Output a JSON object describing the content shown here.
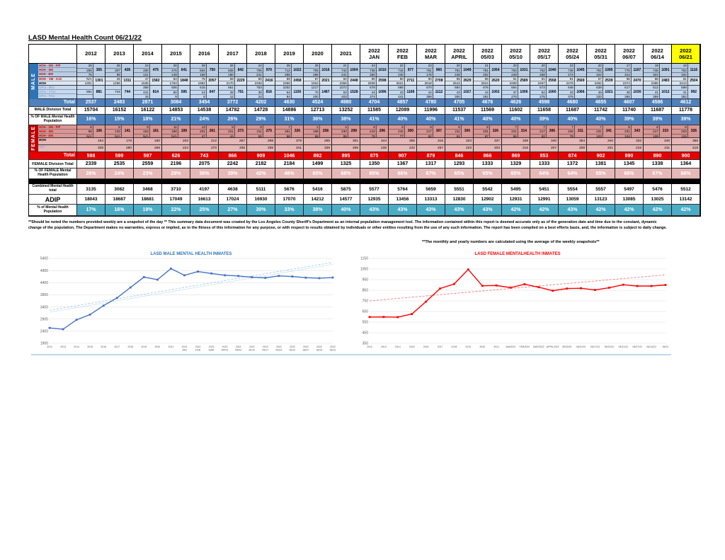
{
  "title": "LASD Mental Health Count 06/21/22",
  "columns": [
    {
      "label": "2012"
    },
    {
      "label": "2013"
    },
    {
      "label": "2014"
    },
    {
      "label": "2015"
    },
    {
      "label": "2016"
    },
    {
      "label": "2017"
    },
    {
      "label": "2018"
    },
    {
      "label": "2019"
    },
    {
      "label": "2020"
    },
    {
      "label": "2021"
    },
    {
      "label": "2022",
      "sub": "JAN"
    },
    {
      "label": "2022",
      "sub": "FEB"
    },
    {
      "label": "2022",
      "sub": "MAR"
    },
    {
      "label": "2022",
      "sub": "APRIL"
    },
    {
      "label": "2022",
      "sub": "05/03"
    },
    {
      "label": "2022",
      "sub": "05/10"
    },
    {
      "label": "2022",
      "sub": "05/17"
    },
    {
      "label": "2022",
      "sub": "05/24"
    },
    {
      "label": "2022",
      "sub": "05/31"
    },
    {
      "label": "2022",
      "sub": "06/07"
    },
    {
      "label": "2022",
      "sub": "06/14"
    },
    {
      "label": "2022",
      "sub": "06/21",
      "highlight": true
    }
  ],
  "male": {
    "side_label": "MALE",
    "groups": [
      {
        "rows": [
          {
            "label": "HOH - SM - FIP",
            "style": "red",
            "values": [
              25,
              25,
              24,
              26,
              28,
              26,
              24,
              25,
              25,
              21,
              24,
              22,
              23,
              20,
              21,
              20,
              20,
              23,
              20,
              17,
              19,
              19
            ]
          },
          {
            "label": "HOH - SM",
            "style": "red",
            "values": [
              255,
              307,
              330,
              476,
              564,
              636,
              705,
              712,
              705,
              742,
              736,
              715,
              761,
              781,
              781,
              763,
              762,
              748,
              751,
              776,
              748,
              763
            ]
          },
          {
            "label": "HOH - EM",
            "style": "red",
            "values": [
              75,
              96,
              121,
              139,
              158,
              180,
              241,
              285,
              286,
              241,
              250,
              240,
              176,
              248,
              252,
              248,
              258,
              274,
              324,
              314,
              324,
              334
            ]
          }
        ],
        "subtotals": [
          355,
          428,
          475,
          641,
          750,
          842,
          970,
          1022,
          1016,
          1004,
          1010,
          977,
          960,
          1049,
          1054,
          1031,
          1040,
          1045,
          1095,
          1107,
          1091,
          1116
        ]
      },
      {
        "rows": [
          {
            "label": "MOH - SM - K10",
            "style": "red",
            "values": [
              "N/A",
              25,
              47,
              84,
              75,
              59,
              80,
              89,
              87,
              92,
              90,
              90,
              90,
              85,
              96,
              91,
              91,
              91,
              57,
              96,
              98,
              91
            ]
          },
          {
            "label": "MOH",
            "style": "black",
            "values": [
              1301,
              1286,
              1535,
              1764,
              1982,
              2170,
              2336,
              2369,
              1934,
              2356,
              2508,
              2621,
              2618,
              2544,
              2524,
              2498,
              2467,
              2478,
              2482,
              2374,
              2385,
              2413
            ]
          }
        ],
        "subtotals": [
          1301,
          1311,
          1582,
          1848,
          2057,
          2229,
          2416,
          2458,
          2021,
          2448,
          2598,
          2711,
          2708,
          2629,
          2620,
          2589,
          2558,
          2569,
          2539,
          2470,
          2483,
          2504
        ]
      },
      {
        "rows": [
          {
            "label": "GPm - MIU",
            "style": "gray",
            "values": [
              "",
              "",
              358,
              506,
              615,
              661,
              753,
              1002,
              1217,
              1072,
              678,
              685,
              670,
              684,
              676,
              694,
              673,
              648,
              639,
              617,
              612,
              599
            ]
          },
          {
            "label": "GPm - 7712",
            "style": "gray",
            "values": [
              881,
              744,
              441,
              80,
              24,
              28,
              39,
              64,
              70,
              53,
              44,
              43,
              44,
              43,
              44,
              37,
              52,
              43,
              49,
              48,
              41,
              41
            ]
          },
          {
            "label": "GPm - PSC",
            "style": "gray",
            "values": [
              "",
              "",
              15,
              9,
              8,
              12,
              24,
              84,
              200,
              403,
              374,
              441,
              398,
              300,
              282,
              275,
              275,
              375,
              333,
              365,
              359,
              352
            ]
          }
        ],
        "subtotals": [
          881,
          744,
          814,
          595,
          647,
          701,
          816,
          1150,
          1487,
          1528,
          1096,
          1169,
          1112,
          1027,
          1002,
          1006,
          1000,
          1066,
          1021,
          1030,
          1012,
          992
        ]
      }
    ],
    "total_label": "Total",
    "totals": [
      2537,
      2483,
      2871,
      3084,
      3454,
      3772,
      4202,
      4630,
      4524,
      4980,
      4704,
      4857,
      4780,
      4705,
      4676,
      4626,
      4598,
      4680,
      4655,
      4607,
      4586,
      4612
    ],
    "division_label": "MALE Division Total",
    "division": [
      15704,
      16152,
      16122,
      14853,
      14538,
      14782,
      14728,
      14886,
      12713,
      13252,
      11585,
      12089,
      11996,
      11537,
      11569,
      11602,
      11658,
      11687,
      11742,
      11740,
      11687,
      11778
    ],
    "pct_label": "% OF MALE Mental Health Population",
    "pct": [
      "16%",
      "15%",
      "18%",
      "21%",
      "24%",
      "26%",
      "29%",
      "31%",
      "36%",
      "38%",
      "41%",
      "40%",
      "40%",
      "41%",
      "40%",
      "40%",
      "39%",
      "40%",
      "40%",
      "39%",
      "39%",
      "39%"
    ]
  },
  "female": {
    "side_label": "FEMALE",
    "groups": [
      {
        "rows": [
          {
            "label": "HOH - SM - FIP",
            "style": "red",
            "values": [
              8,
              8,
              8,
              11,
              13,
              8,
              9,
              7,
              2,
              4,
              8,
              8,
              8,
              8,
              8,
              7,
              7,
              7,
              7,
              8,
              8,
              8
            ]
          },
          {
            "label": "HOH - SM",
            "style": "red",
            "values": [
              98,
              133,
              153,
              188,
              201,
              221,
              211,
              261,
              198,
              230,
              210,
              215,
              217,
              211,
              231,
              221,
              217,
              226,
              231,
              231,
              217,
              203
            ]
          },
          {
            "label": "HOH - EM",
            "style": "red",
            "values": [
              "N/A",
              "N/A",
              "N/A",
              "N/A",
              47,
              44,
              55,
              58,
              58,
              65,
              78,
              77,
              82,
              81,
              87,
              86,
              82,
              78,
              103,
              104,
              108,
              115
            ]
          }
        ],
        "subtotals": [
          106,
          141,
          161,
          199,
          261,
          273,
          275,
          326,
          258,
          299,
          296,
          300,
          307,
          300,
          326,
          314,
          306,
          311,
          341,
          343,
          333,
          326
        ]
      }
    ],
    "single_rows": [
      {
        "label": "MOH",
        "style": "black",
        "values": [
          164,
          178,
          180,
          203,
          212,
          257,
          298,
          379,
          295,
          301,
          344,
          365,
          315,
          323,
          337,
          339,
          340,
          354,
          340,
          332,
          346,
          356
        ]
      },
      {
        "label": "GPf",
        "style": "gray",
        "values": [
          328,
          280,
          256,
          224,
          270,
          336,
          336,
          341,
          339,
          295,
          235,
          242,
          257,
          223,
          203,
          216,
          207,
          209,
          221,
          215,
          211,
          218
        ]
      }
    ],
    "total_label": "Total",
    "totals": [
      598,
      599,
      597,
      626,
      743,
      866,
      909,
      1046,
      892,
      895,
      875,
      907,
      879,
      846,
      866,
      869,
      853,
      874,
      902,
      890,
      890,
      900
    ],
    "division_label": "FEMALE Division Total",
    "division": [
      2339,
      2535,
      2559,
      2196,
      2075,
      2242,
      2182,
      2184,
      1499,
      1325,
      1350,
      1367,
      1317,
      1293,
      1333,
      1329,
      1333,
      1372,
      1381,
      1345,
      1338,
      1364
    ],
    "pct_label": "% OF FEMALE Mental Health Population",
    "pct": [
      "26%",
      "24%",
      "23%",
      "29%",
      "36%",
      "39%",
      "42%",
      "48%",
      "60%",
      "68%",
      "65%",
      "66%",
      "67%",
      "65%",
      "65%",
      "65%",
      "64%",
      "64%",
      "65%",
      "66%",
      "67%",
      "66%"
    ]
  },
  "combined": {
    "label": "Combined Mental Health total",
    "values": [
      3135,
      3082,
      3468,
      3710,
      4197,
      4638,
      5111,
      5676,
      5416,
      5875,
      5577,
      5764,
      5659,
      5551,
      5542,
      5495,
      5451,
      5554,
      5557,
      5497,
      5476,
      5512
    ]
  },
  "adip": {
    "label": "ADIP",
    "values": [
      18043,
      18687,
      18681,
      17049,
      16613,
      17024,
      16930,
      17070,
      14212,
      14577,
      12935,
      13456,
      13313,
      12830,
      12902,
      12931,
      12991,
      13059,
      13123,
      13085,
      13025,
      13142
    ]
  },
  "pct_mh": {
    "label": "% of Mental Health Population",
    "values": [
      "17%",
      "16%",
      "19%",
      "22%",
      "25%",
      "27%",
      "30%",
      "33%",
      "38%",
      "40%",
      "43%",
      "43%",
      "43%",
      "43%",
      "43%",
      "42%",
      "42%",
      "43%",
      "42%",
      "42%",
      "42%",
      "42%"
    ]
  },
  "footnote": "**Should be noted the numbers provided weekly are a snapshot of the day ** This summary data document was created by the Los Angeles County Sheriff's Department as an internal population management tool.  The information contained within this report is deemed accurate only as of the generation date and time due to the constant, dynamic change of the population.  The Department makes no warranties, express or implied, as to the fitness of this information for any purpose, or with respect to results obtained by individuals or other entities resulting from the use of any such information.  The report has been compiled on a best efforts basis, and, the information is subject to daily change.",
  "note_right": "**The monthly and yearly numbers are calculated using the average of the weekly snapshots**",
  "colors": {
    "male_total_row": "#4f81bd",
    "male_group_a": "#b8cce4",
    "male_group_b": "#dce6f1",
    "male_group_c": "#c5d9f1",
    "female_total_row": "#e60000",
    "female_group_a": "#d99694",
    "female_rows": "#e6b8b7",
    "teal_row": "#4bacc6",
    "highlight_yellow": "#ffff00",
    "label_red": "#c00000",
    "label_gray": "#8aa9d6",
    "side_male": "#2e74b5",
    "side_female": "#c00000",
    "male_line": "#4472c4",
    "male_trend": "#9dc3e6",
    "male_trend2": "#cfe0f3",
    "female_line": "#ff0000",
    "female_trend": "#ff6666",
    "grid": "#d9d9d9",
    "tick_text": "#595959"
  },
  "chart_data": [
    {
      "type": "line",
      "title": "LASD MALE MENTAL HEALTH INMATES",
      "x_labels": [
        "2012",
        "2013",
        "2014",
        "2015",
        "2016",
        "2017",
        "2018",
        "2019",
        "2020",
        "2021",
        "2022|JAN",
        "2022|FEB",
        "2022|MAR",
        "2022|APRIL",
        "2022|05/03",
        "2022|05/10",
        "2022|05/17",
        "2022|05/24",
        "2022|05/31",
        "2022|06/07",
        "2022|06/14",
        "2022|06/21"
      ],
      "values": [
        2537,
        2483,
        2871,
        3084,
        3454,
        3772,
        4202,
        4630,
        4524,
        4980,
        4704,
        4857,
        4780,
        4705,
        4676,
        4626,
        4598,
        4680,
        4655,
        4607,
        4586,
        4612
      ],
      "ylim": [
        1900,
        5400
      ],
      "ystep": 500,
      "grid": true,
      "legend": "none",
      "trendlines": 2
    },
    {
      "type": "line",
      "title": "LASD FEMALE MENTALHEALTH INMATES",
      "x_labels": [
        "2012",
        "2013",
        "2014",
        "2015",
        "2016",
        "2017",
        "2018",
        "2019",
        "2020",
        "2021",
        "JAN2022",
        "FEB2022",
        "MAR2022",
        "APRIL2022",
        "05/03/22",
        "05/10/22",
        "05/17/22",
        "05/24/22",
        "05/31/22",
        "06/07/22",
        "06/14/22",
        "06/21"
      ],
      "values": [
        598,
        599,
        597,
        626,
        743,
        866,
        909,
        1046,
        892,
        895,
        875,
        907,
        879,
        846,
        866,
        869,
        853,
        874,
        902,
        890,
        890,
        900
      ],
      "ylim": [
        350,
        1150
      ],
      "ystep": 100,
      "grid": true,
      "legend": "none",
      "trendlines": 1
    }
  ]
}
